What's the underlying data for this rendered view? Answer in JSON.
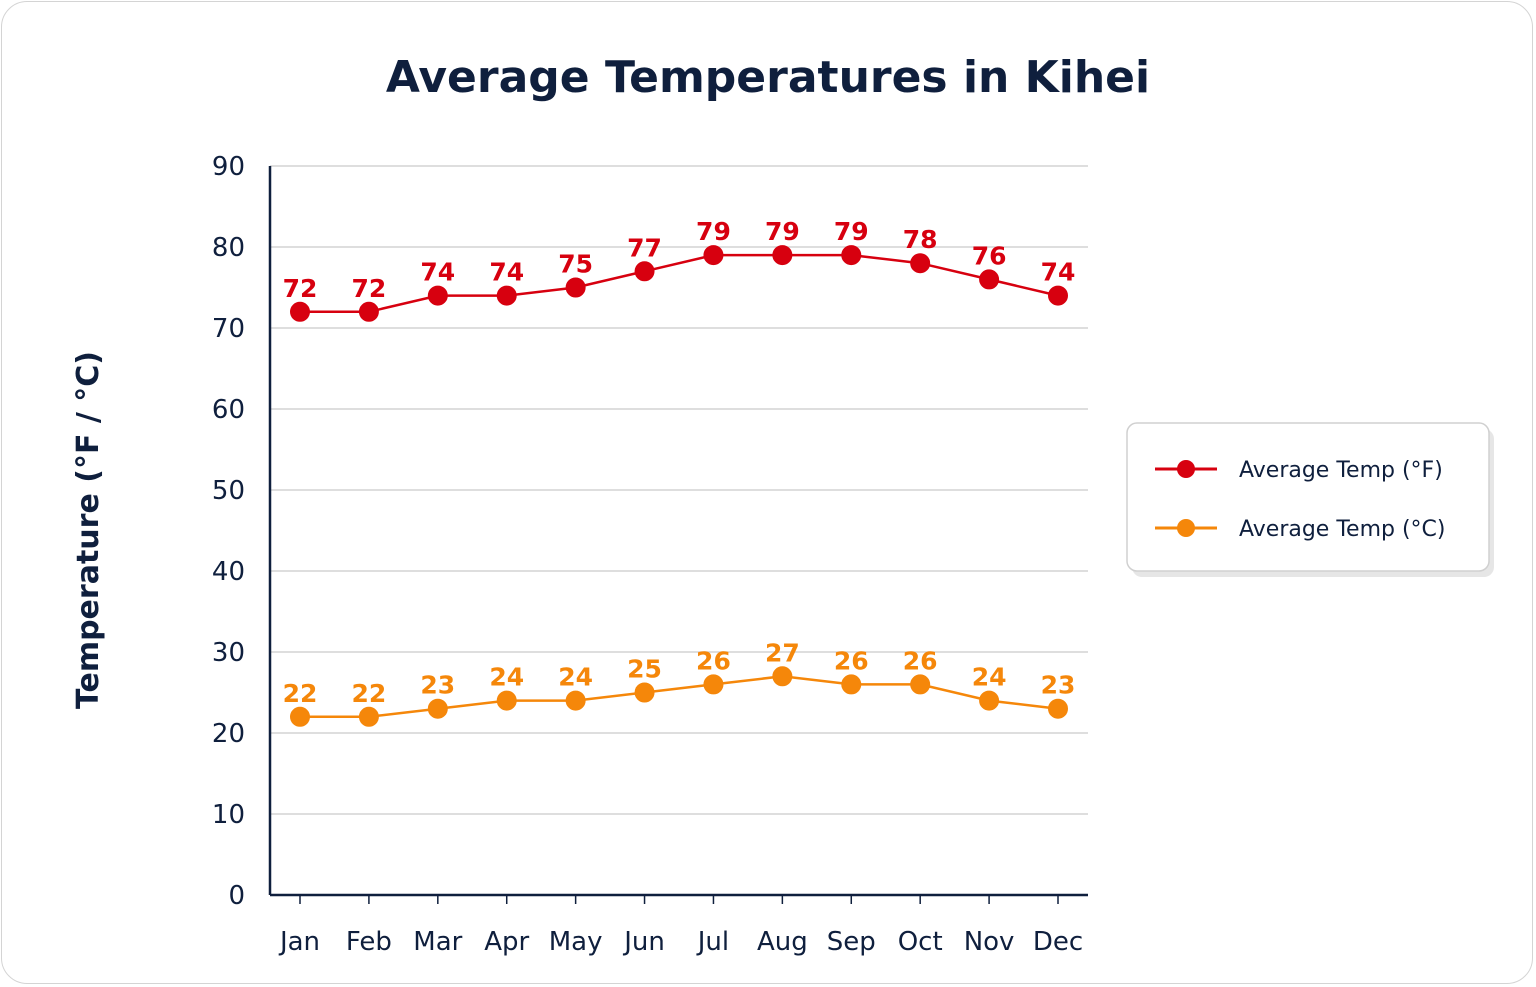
{
  "chart_data": {
    "type": "line",
    "title": "Average Temperatures in Kihei",
    "xlabel": "",
    "ylabel": "Temperature (°F / °C)",
    "categories": [
      "Jan",
      "Feb",
      "Mar",
      "Apr",
      "May",
      "Jun",
      "Jul",
      "Aug",
      "Sep",
      "Oct",
      "Nov",
      "Dec"
    ],
    "ylim": [
      0,
      90
    ],
    "yticks": [
      0,
      10,
      20,
      30,
      40,
      50,
      60,
      70,
      80,
      90
    ],
    "grid": "horizontal",
    "legend_position": "right",
    "series": [
      {
        "name": "Average Temp (°F)",
        "color": "#d7000f",
        "values": [
          72,
          72,
          74,
          74,
          75,
          77,
          79,
          79,
          79,
          78,
          76,
          74
        ]
      },
      {
        "name": "Average Temp (°C)",
        "color": "#f5870a",
        "values": [
          22,
          22,
          23,
          24,
          24,
          25,
          26,
          27,
          26,
          26,
          24,
          23
        ]
      }
    ]
  },
  "colors": {
    "text": "#0f1f3d",
    "grid": "#d3d3d3",
    "axis": "#0f1f3d"
  }
}
